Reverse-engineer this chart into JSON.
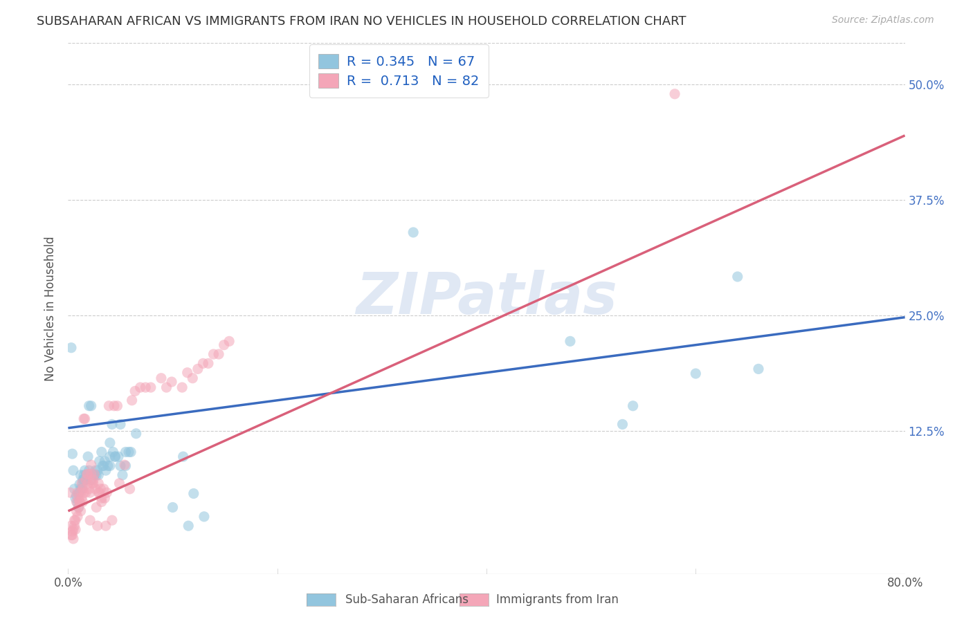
{
  "title": "SUBSAHARAN AFRICAN VS IMMIGRANTS FROM IRAN NO VEHICLES IN HOUSEHOLD CORRELATION CHART",
  "source": "Source: ZipAtlas.com",
  "ylabel": "No Vehicles in Household",
  "ytick_labels": [
    "12.5%",
    "25.0%",
    "37.5%",
    "50.0%"
  ],
  "ytick_values": [
    0.125,
    0.25,
    0.375,
    0.5
  ],
  "xmin": 0.0,
  "xmax": 0.8,
  "ymin": -0.03,
  "ymax": 0.545,
  "legend1_R": "0.345",
  "legend1_N": "67",
  "legend2_R": "0.713",
  "legend2_N": "82",
  "color_blue": "#92c5de",
  "color_pink": "#f4a6b8",
  "trendline1_color": "#3a6bbf",
  "trendline2_color": "#d9607a",
  "watermark": "ZIPatlas",
  "blue_scatter": [
    [
      0.003,
      0.215
    ],
    [
      0.004,
      0.1
    ],
    [
      0.005,
      0.082
    ],
    [
      0.006,
      0.062
    ],
    [
      0.007,
      0.052
    ],
    [
      0.008,
      0.055
    ],
    [
      0.009,
      0.047
    ],
    [
      0.01,
      0.057
    ],
    [
      0.01,
      0.042
    ],
    [
      0.011,
      0.067
    ],
    [
      0.012,
      0.062
    ],
    [
      0.012,
      0.077
    ],
    [
      0.013,
      0.062
    ],
    [
      0.014,
      0.072
    ],
    [
      0.014,
      0.067
    ],
    [
      0.015,
      0.077
    ],
    [
      0.015,
      0.072
    ],
    [
      0.016,
      0.072
    ],
    [
      0.016,
      0.082
    ],
    [
      0.017,
      0.072
    ],
    [
      0.017,
      0.077
    ],
    [
      0.018,
      0.077
    ],
    [
      0.019,
      0.097
    ],
    [
      0.02,
      0.082
    ],
    [
      0.02,
      0.152
    ],
    [
      0.022,
      0.072
    ],
    [
      0.022,
      0.152
    ],
    [
      0.025,
      0.077
    ],
    [
      0.025,
      0.077
    ],
    [
      0.026,
      0.082
    ],
    [
      0.027,
      0.077
    ],
    [
      0.028,
      0.082
    ],
    [
      0.029,
      0.077
    ],
    [
      0.03,
      0.092
    ],
    [
      0.032,
      0.102
    ],
    [
      0.033,
      0.087
    ],
    [
      0.034,
      0.087
    ],
    [
      0.035,
      0.092
    ],
    [
      0.036,
      0.082
    ],
    [
      0.038,
      0.087
    ],
    [
      0.04,
      0.112
    ],
    [
      0.04,
      0.087
    ],
    [
      0.04,
      0.097
    ],
    [
      0.042,
      0.132
    ],
    [
      0.043,
      0.102
    ],
    [
      0.045,
      0.097
    ],
    [
      0.045,
      0.097
    ],
    [
      0.048,
      0.097
    ],
    [
      0.05,
      0.087
    ],
    [
      0.05,
      0.132
    ],
    [
      0.052,
      0.077
    ],
    [
      0.055,
      0.087
    ],
    [
      0.055,
      0.102
    ],
    [
      0.058,
      0.102
    ],
    [
      0.06,
      0.102
    ],
    [
      0.065,
      0.122
    ],
    [
      0.33,
      0.34
    ],
    [
      0.1,
      0.042
    ],
    [
      0.11,
      0.097
    ],
    [
      0.115,
      0.022
    ],
    [
      0.12,
      0.057
    ],
    [
      0.13,
      0.032
    ],
    [
      0.48,
      0.222
    ],
    [
      0.53,
      0.132
    ],
    [
      0.54,
      0.152
    ],
    [
      0.6,
      0.187
    ],
    [
      0.64,
      0.292
    ],
    [
      0.66,
      0.192
    ]
  ],
  "pink_scatter": [
    [
      0.002,
      0.058
    ],
    [
      0.003,
      0.022
    ],
    [
      0.003,
      0.012
    ],
    [
      0.004,
      0.016
    ],
    [
      0.004,
      0.012
    ],
    [
      0.005,
      0.018
    ],
    [
      0.005,
      0.008
    ],
    [
      0.006,
      0.028
    ],
    [
      0.006,
      0.022
    ],
    [
      0.007,
      0.028
    ],
    [
      0.007,
      0.018
    ],
    [
      0.008,
      0.038
    ],
    [
      0.008,
      0.048
    ],
    [
      0.009,
      0.058
    ],
    [
      0.009,
      0.032
    ],
    [
      0.01,
      0.052
    ],
    [
      0.01,
      0.042
    ],
    [
      0.011,
      0.048
    ],
    [
      0.011,
      0.048
    ],
    [
      0.012,
      0.058
    ],
    [
      0.012,
      0.038
    ],
    [
      0.013,
      0.068
    ],
    [
      0.013,
      0.052
    ],
    [
      0.014,
      0.062
    ],
    [
      0.014,
      0.048
    ],
    [
      0.015,
      0.058
    ],
    [
      0.015,
      0.138
    ],
    [
      0.016,
      0.138
    ],
    [
      0.017,
      0.058
    ],
    [
      0.017,
      0.072
    ],
    [
      0.018,
      0.078
    ],
    [
      0.019,
      0.068
    ],
    [
      0.019,
      0.078
    ],
    [
      0.02,
      0.062
    ],
    [
      0.021,
      0.028
    ],
    [
      0.021,
      0.058
    ],
    [
      0.022,
      0.088
    ],
    [
      0.022,
      0.078
    ],
    [
      0.023,
      0.068
    ],
    [
      0.024,
      0.072
    ],
    [
      0.024,
      0.068
    ],
    [
      0.025,
      0.078
    ],
    [
      0.026,
      0.062
    ],
    [
      0.027,
      0.042
    ],
    [
      0.028,
      0.022
    ],
    [
      0.029,
      0.058
    ],
    [
      0.029,
      0.068
    ],
    [
      0.03,
      0.058
    ],
    [
      0.031,
      0.062
    ],
    [
      0.032,
      0.052
    ],
    [
      0.032,
      0.048
    ],
    [
      0.034,
      0.062
    ],
    [
      0.035,
      0.052
    ],
    [
      0.036,
      0.022
    ],
    [
      0.037,
      0.058
    ],
    [
      0.039,
      0.152
    ],
    [
      0.042,
      0.028
    ],
    [
      0.044,
      0.152
    ],
    [
      0.047,
      0.152
    ],
    [
      0.049,
      0.068
    ],
    [
      0.054,
      0.088
    ],
    [
      0.059,
      0.062
    ],
    [
      0.061,
      0.158
    ],
    [
      0.064,
      0.168
    ],
    [
      0.069,
      0.172
    ],
    [
      0.074,
      0.172
    ],
    [
      0.079,
      0.172
    ],
    [
      0.089,
      0.182
    ],
    [
      0.094,
      0.172
    ],
    [
      0.099,
      0.178
    ],
    [
      0.109,
      0.172
    ],
    [
      0.114,
      0.188
    ],
    [
      0.119,
      0.182
    ],
    [
      0.124,
      0.192
    ],
    [
      0.129,
      0.198
    ],
    [
      0.134,
      0.198
    ],
    [
      0.139,
      0.208
    ],
    [
      0.144,
      0.208
    ],
    [
      0.149,
      0.218
    ],
    [
      0.154,
      0.222
    ],
    [
      0.58,
      0.49
    ]
  ],
  "trendline1_x": [
    0.0,
    0.8
  ],
  "trendline1_y": [
    0.128,
    0.248
  ],
  "trendline2_x": [
    0.0,
    0.8
  ],
  "trendline2_y": [
    0.038,
    0.445
  ]
}
